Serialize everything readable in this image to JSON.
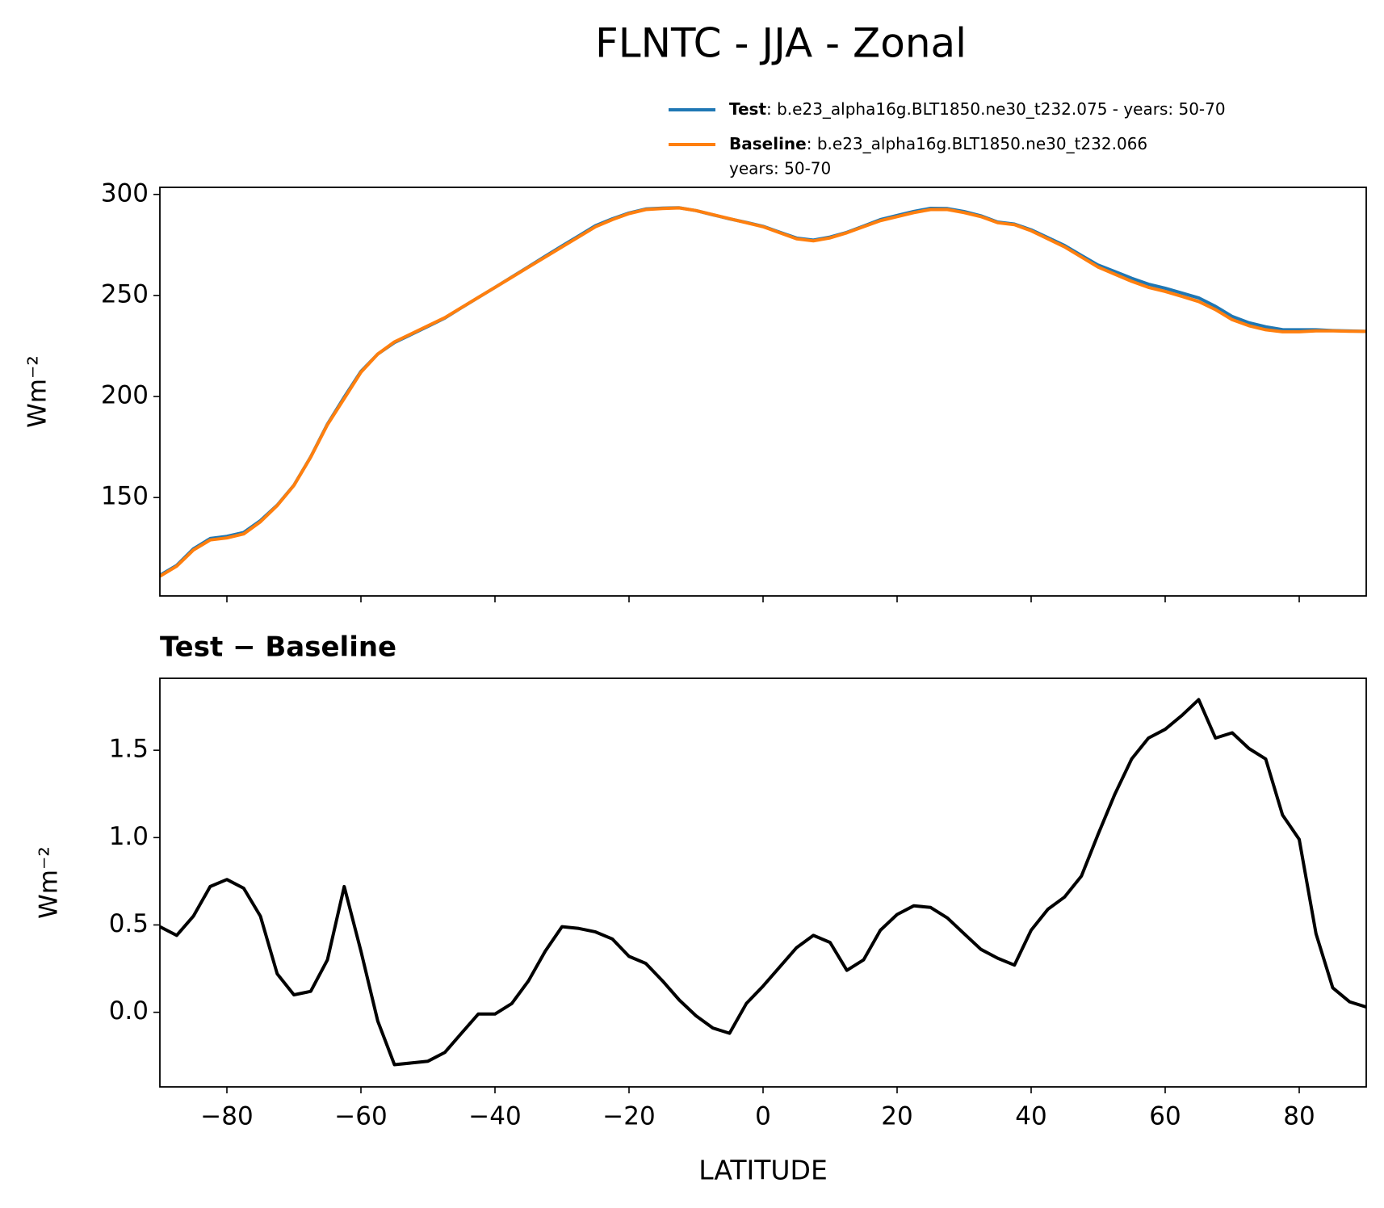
{
  "title": "FLNTC - JJA - Zonal",
  "chart_data": [
    {
      "type": "line",
      "ylabel": "Wm⁻²",
      "x": [
        -90,
        -87.5,
        -85,
        -82.5,
        -80,
        -77.5,
        -75,
        -72.5,
        -70,
        -67.5,
        -65,
        -62.5,
        -60,
        -57.5,
        -55,
        -52.5,
        -50,
        -47.5,
        -45,
        -42.5,
        -40,
        -37.5,
        -35,
        -32.5,
        -30,
        -27.5,
        -25,
        -22.5,
        -20,
        -17.5,
        -15,
        -12.5,
        -10,
        -7.5,
        -5,
        -2.5,
        0,
        2.5,
        5,
        7.5,
        10,
        12.5,
        15,
        17.5,
        20,
        22.5,
        25,
        27.5,
        30,
        32.5,
        35,
        37.5,
        40,
        42.5,
        45,
        47.5,
        50,
        52.5,
        55,
        57.5,
        60,
        62.5,
        65,
        67.5,
        70,
        72.5,
        75,
        77.5,
        80,
        82.5,
        85,
        87.5,
        90
      ],
      "series": [
        {
          "name": "Test",
          "description": [
            ": b.e23_alpha16g.BLT1850.ne30_t232.075 - years: 50-70"
          ],
          "color": "#1f77b4",
          "values": [
            111.5,
            116.4,
            124.6,
            129.7,
            130.8,
            132.7,
            138.6,
            146.2,
            156.1,
            170.1,
            186.3,
            199.7,
            212.4,
            221.0,
            226.7,
            230.7,
            234.7,
            238.8,
            243.9,
            249.0,
            254.0,
            259.1,
            264.2,
            269.4,
            274.5,
            279.5,
            284.5,
            287.9,
            290.8,
            292.8,
            293.2,
            293.4,
            292.0,
            289.9,
            287.9,
            286.1,
            284.2,
            281.3,
            278.4,
            277.4,
            278.9,
            281.2,
            284.3,
            287.5,
            289.6,
            291.6,
            293.1,
            293.0,
            291.5,
            289.4,
            286.3,
            285.3,
            282.5,
            278.6,
            274.7,
            269.8,
            265.0,
            261.8,
            258.5,
            255.6,
            253.6,
            251.2,
            248.8,
            244.6,
            239.6,
            236.5,
            234.5,
            233.1,
            233.0,
            233.0,
            232.6,
            232.4,
            232.2
          ]
        },
        {
          "name": "Baseline",
          "description": [
            ": b.e23_alpha16g.BLT1850.ne30_t232.066",
            "years: 50-70"
          ],
          "color": "#ff7f0e",
          "values": [
            111,
            116,
            124,
            129,
            130,
            132,
            138,
            146,
            156,
            170,
            186,
            199,
            212,
            221,
            227,
            231,
            235,
            239,
            244,
            249,
            254,
            259,
            264,
            269,
            274,
            279,
            284,
            287.5,
            290.5,
            292.5,
            293,
            293.3,
            292,
            290,
            288,
            286,
            284,
            281,
            278,
            277,
            278.5,
            281,
            284,
            287,
            289,
            291,
            292.5,
            292.5,
            291,
            289,
            286,
            285,
            282,
            278,
            274,
            269,
            264,
            260.5,
            257,
            254,
            252,
            249.5,
            247,
            243,
            238,
            235,
            233,
            232,
            232,
            232.5,
            232.5,
            232.3,
            232.2
          ]
        }
      ],
      "xlim": [
        -90,
        90
      ],
      "xticks": [
        -80,
        -60,
        -40,
        -20,
        0,
        20,
        40,
        60,
        80
      ],
      "xtick_labels": false,
      "ylim": [
        101.3,
        303.5
      ],
      "yticks": [
        150,
        200,
        250,
        300
      ]
    },
    {
      "type": "line",
      "title": "Test − Baseline",
      "xlabel": "LATITUDE",
      "ylabel": "Wm⁻²",
      "x": [
        -90,
        -87.5,
        -85,
        -82.5,
        -80,
        -77.5,
        -75,
        -72.5,
        -70,
        -67.5,
        -65,
        -62.5,
        -60,
        -57.5,
        -55,
        -52.5,
        -50,
        -47.5,
        -45,
        -42.5,
        -40,
        -37.5,
        -35,
        -32.5,
        -30,
        -27.5,
        -25,
        -22.5,
        -20,
        -17.5,
        -15,
        -12.5,
        -10,
        -7.5,
        -5,
        -2.5,
        0,
        2.5,
        5,
        7.5,
        10,
        12.5,
        15,
        17.5,
        20,
        22.5,
        25,
        27.5,
        30,
        32.5,
        35,
        37.5,
        40,
        42.5,
        45,
        47.5,
        50,
        52.5,
        55,
        57.5,
        60,
        62.5,
        65,
        67.5,
        70,
        72.5,
        75,
        77.5,
        80,
        82.5,
        85,
        87.5,
        90
      ],
      "series": [
        {
          "color": "#000000",
          "values": [
            0.49,
            0.44,
            0.55,
            0.72,
            0.76,
            0.71,
            0.55,
            0.22,
            0.1,
            0.12,
            0.3,
            0.72,
            0.35,
            -0.05,
            -0.3,
            -0.29,
            -0.28,
            -0.23,
            -0.12,
            -0.01,
            -0.01,
            0.05,
            0.18,
            0.35,
            0.49,
            0.48,
            0.46,
            0.42,
            0.32,
            0.28,
            0.18,
            0.07,
            -0.02,
            -0.09,
            -0.12,
            0.05,
            0.15,
            0.26,
            0.37,
            0.44,
            0.4,
            0.24,
            0.3,
            0.47,
            0.56,
            0.61,
            0.6,
            0.54,
            0.45,
            0.36,
            0.31,
            0.27,
            0.47,
            0.59,
            0.66,
            0.78,
            1.02,
            1.25,
            1.45,
            1.57,
            1.62,
            1.7,
            1.79,
            1.57,
            1.6,
            1.51,
            1.45,
            1.13,
            0.99,
            0.45,
            0.14,
            0.06,
            0.03
          ]
        }
      ],
      "xlim": [
        -90,
        90
      ],
      "xticks": [
        {
          "value": -80,
          "label": "−80"
        },
        {
          "value": -60,
          "label": "−60"
        },
        {
          "value": -40,
          "label": "−40"
        },
        {
          "value": -20,
          "label": "−20"
        },
        0,
        20,
        40,
        60,
        80
      ],
      "ylim": [
        -0.427,
        1.912
      ],
      "yticks": [
        {
          "value": 0,
          "label": "0.0"
        },
        0.5,
        {
          "value": 1,
          "label": "1.0"
        },
        1.5
      ]
    }
  ]
}
